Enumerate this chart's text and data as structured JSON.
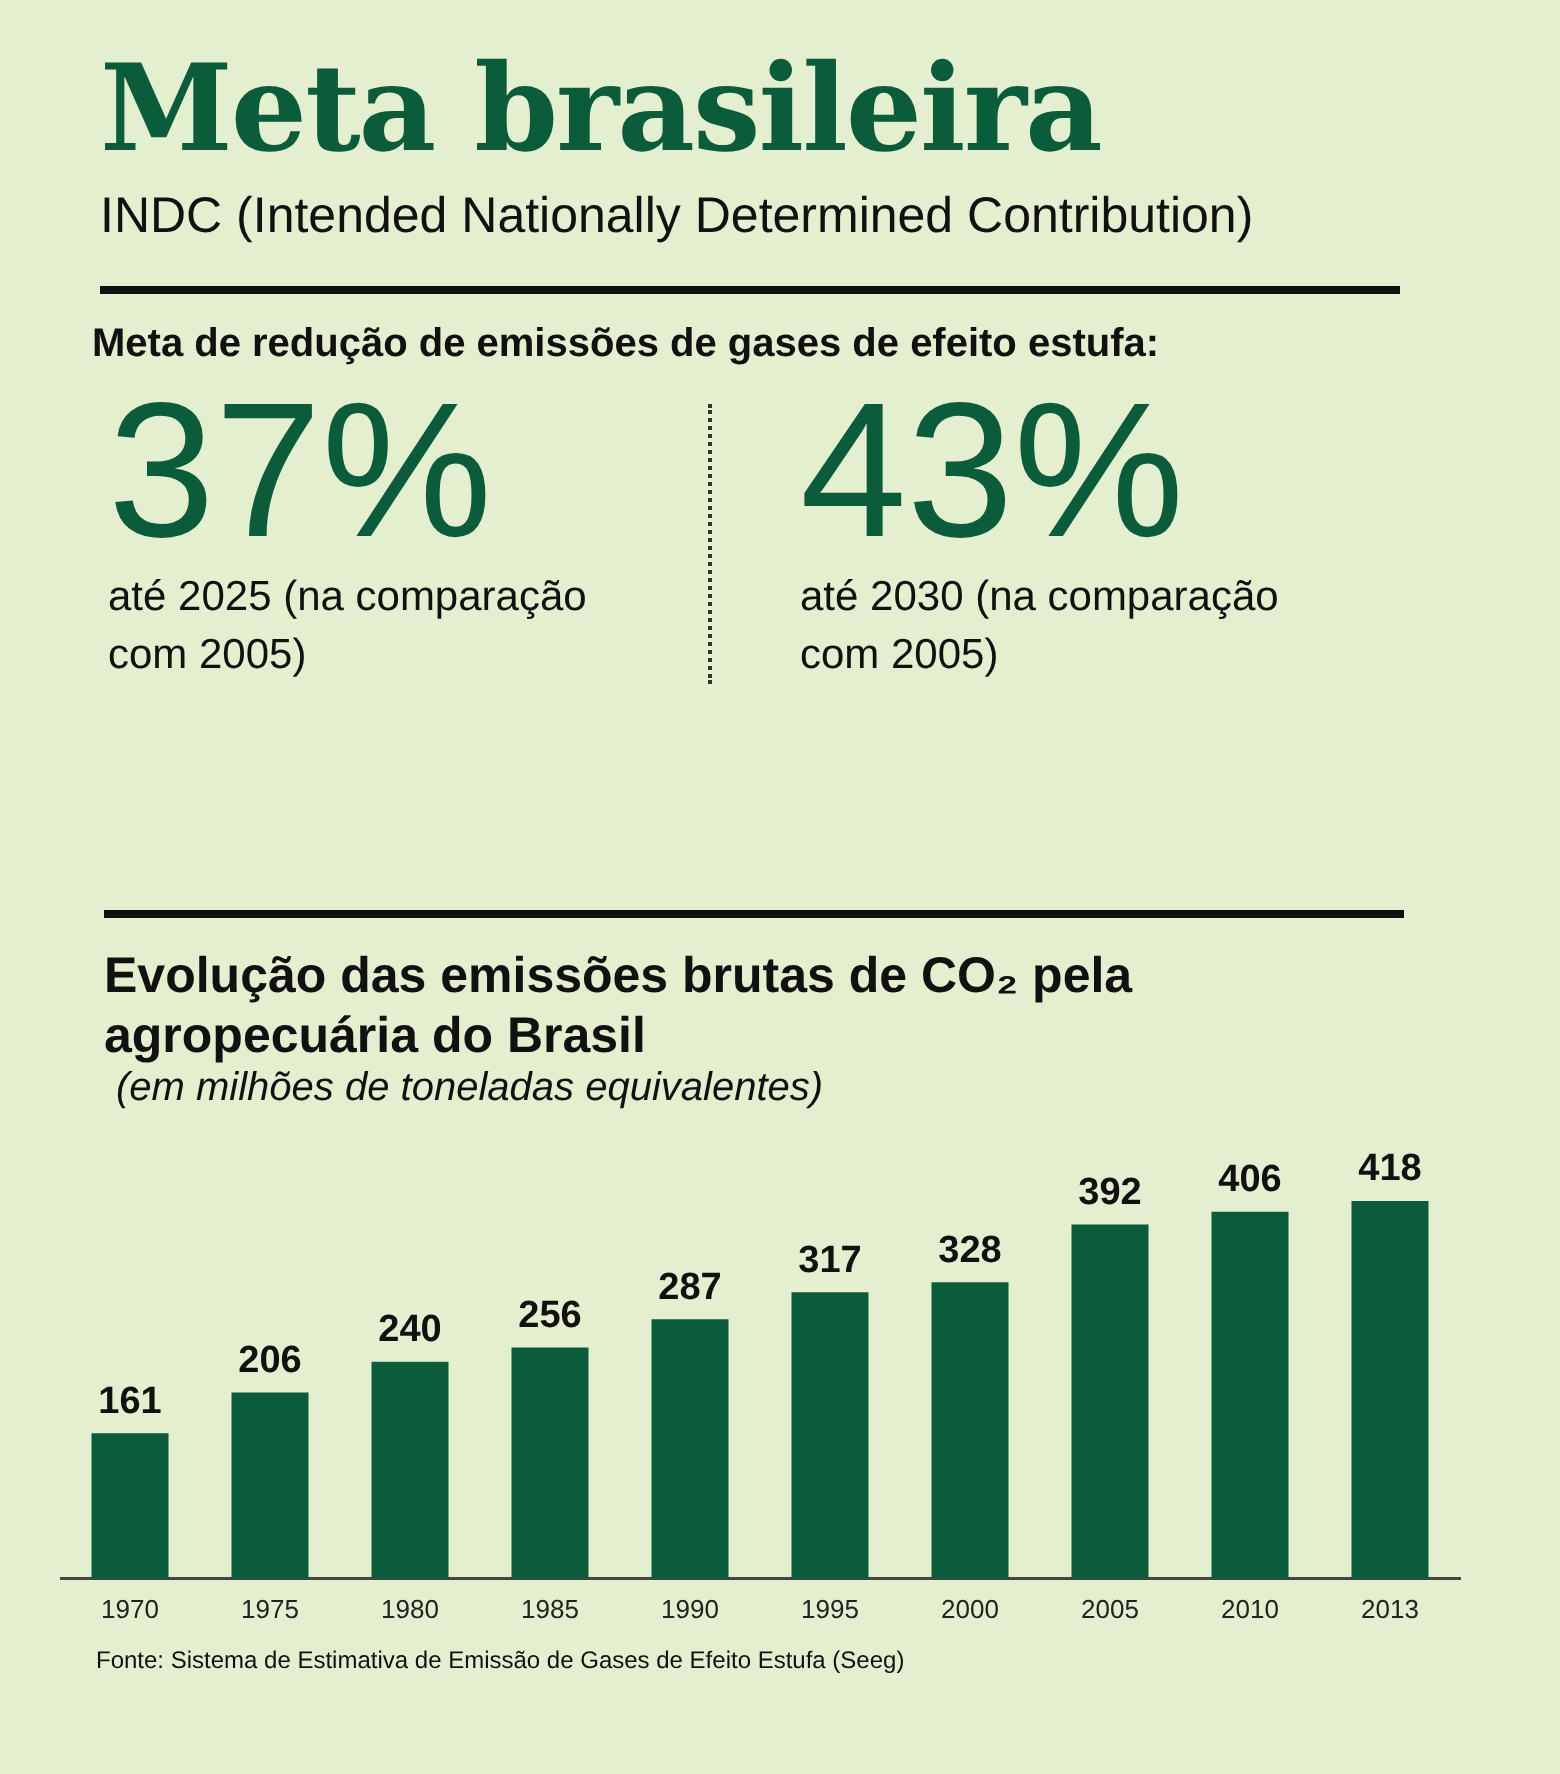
{
  "chart_data": [
    {
      "type": "other",
      "title": "Meta brasileira",
      "subtitle": "INDC (Intended Nationally Determined Contribution)",
      "annotations": [
        "Meta de redução de emissões de gases de efeito estufa:",
        "37%",
        "até 2025 (na comparação com 2005)",
        "43%",
        "até 2030 (na comparação com 2005)"
      ]
    },
    {
      "type": "bar",
      "title": "Evolução das emissões brutas de CO₂ pela agropecuária do Brasil",
      "subtitle": "(em milhões de toneladas equivalentes)",
      "categories": [
        "1970",
        "1975",
        "1980",
        "1985",
        "1990",
        "1995",
        "2000",
        "2005",
        "2010",
        "2013"
      ],
      "values": [
        161,
        206,
        240,
        256,
        287,
        317,
        328,
        392,
        406,
        418
      ],
      "color": "#0b5c3b",
      "data_labels": true,
      "annotations": [
        "Fonte: Sistema de Estimativa de Emissão de Gases de Efeito Estufa (Seeg)"
      ]
    }
  ]
}
